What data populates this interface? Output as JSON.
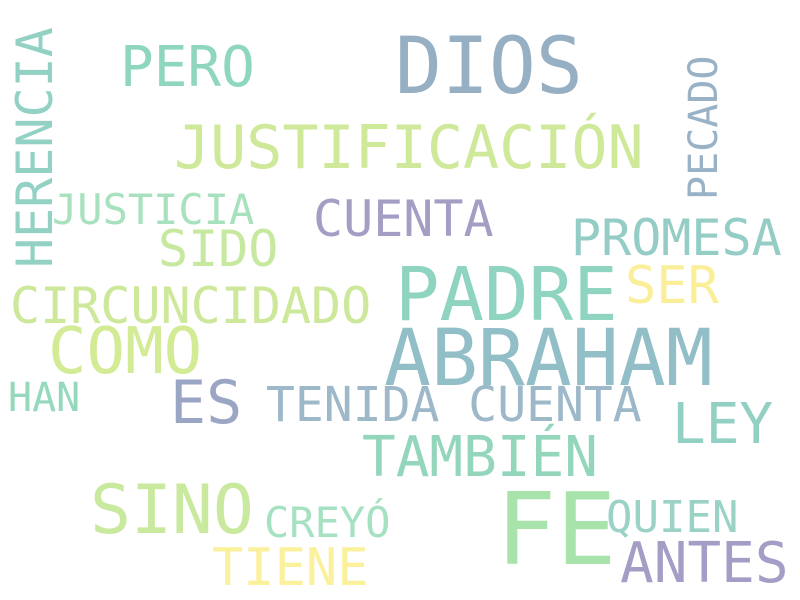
{
  "words": [
    {
      "text": "DIOS",
      "color": "#97afc3"
    },
    {
      "text": "PERO",
      "color": "#8fd6bf"
    },
    {
      "text": "HERENCIA",
      "color": "#93d1c4"
    },
    {
      "text": "PECADO",
      "color": "#9ab2c6"
    },
    {
      "text": "JUSTIFICACIÓN",
      "color": "#cfe99a"
    },
    {
      "text": "JUSTICIA",
      "color": "#a8e1be"
    },
    {
      "text": "CUENTA",
      "color": "#a29ec4"
    },
    {
      "text": "PROMESA",
      "color": "#94cdc6"
    },
    {
      "text": "SIDO",
      "color": "#c7e89f"
    },
    {
      "text": "PADRE",
      "color": "#8fd3c1"
    },
    {
      "text": "SER",
      "color": "#faef98"
    },
    {
      "text": "CIRCUNCIDADO",
      "color": "#cde89b"
    },
    {
      "text": "COMO",
      "color": "#d3eb95"
    },
    {
      "text": "ABRAHAM",
      "color": "#92bec8"
    },
    {
      "text": "HAN",
      "color": "#95d9bd"
    },
    {
      "text": "ES",
      "color": "#9ba6c5"
    },
    {
      "text": "TENIDA CUENTA",
      "color": "#9db8c8"
    },
    {
      "text": "LEY",
      "color": "#92d0c4"
    },
    {
      "text": "TAMBIÉN",
      "color": "#93d6bc"
    },
    {
      "text": "SINO",
      "color": "#c8e99e"
    },
    {
      "text": "FE",
      "color": "#a7e3ab"
    },
    {
      "text": "CREYÓ",
      "color": "#a6e1c2"
    },
    {
      "text": "QUIEN",
      "color": "#9ad3c6"
    },
    {
      "text": "TIENE",
      "color": "#fbf09b"
    },
    {
      "text": "ANTES",
      "color": "#a49ec6"
    }
  ]
}
